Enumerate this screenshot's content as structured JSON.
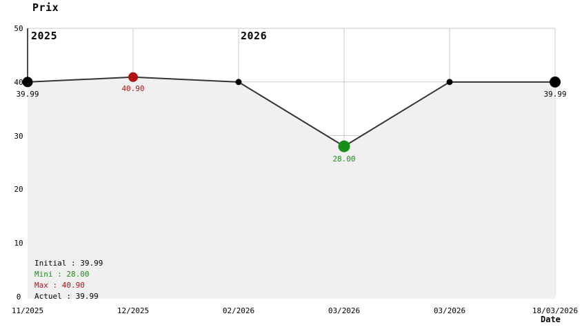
{
  "title": "Prix",
  "xlabel": "Date",
  "colors": {
    "point_black": "#000000",
    "point_red": "#b31212",
    "point_green": "#1a8c1a",
    "grid": "#c9c9c9",
    "axis": "#000000",
    "line": "#333333",
    "fill": "#f0f0f0",
    "text": "#000000"
  },
  "chart_data": {
    "type": "line",
    "title": "Prix",
    "xlabel": "Date",
    "ylabel": "Prix",
    "ylim": [
      0,
      50
    ],
    "y_ticks": [
      50,
      40,
      30,
      20,
      10,
      0
    ],
    "grid": true,
    "area_fill": true,
    "x_labels": [
      "11/2025",
      "12/2025",
      "02/2026",
      "03/2026",
      "03/2026",
      "18/03/2026"
    ],
    "points": [
      {
        "date": "11/2025",
        "value": 39.99,
        "role": "initial",
        "label": "39.99"
      },
      {
        "date": "12/2025",
        "value": 40.9,
        "role": "max",
        "label": "40.90"
      },
      {
        "date": "02/2026",
        "value": 39.99,
        "role": "regular",
        "label": ""
      },
      {
        "date": "03/2026",
        "value": 28.0,
        "role": "min",
        "label": "28.00"
      },
      {
        "date": "03/2026",
        "value": 39.99,
        "role": "regular",
        "label": ""
      },
      {
        "date": "18/03/2026",
        "value": 39.99,
        "role": "current",
        "label": "39.99"
      }
    ],
    "year_markers": [
      {
        "label": "2025",
        "index": 0
      },
      {
        "label": "2026",
        "index": 2
      }
    ],
    "legend_position": "bottom-left",
    "legend": [
      {
        "label": "Initial",
        "value": "39.99",
        "color": "point_black"
      },
      {
        "label": "Mini",
        "value": "28.00",
        "color": "point_green"
      },
      {
        "label": "Max",
        "value": "40.90",
        "color": "point_red"
      },
      {
        "label": "Actuel",
        "value": "39.99",
        "color": "point_black"
      }
    ]
  }
}
